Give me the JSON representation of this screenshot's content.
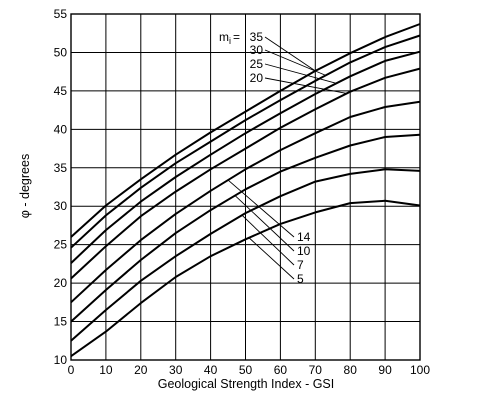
{
  "chart_data": {
    "type": "line",
    "xlabel": "Geological Strength Index - GSI",
    "ylabel": "φ - degrees",
    "xlim": [
      0,
      100
    ],
    "ylim": [
      10,
      55
    ],
    "x_ticks": [
      0,
      10,
      20,
      30,
      40,
      50,
      60,
      70,
      80,
      90,
      100
    ],
    "y_ticks": [
      10,
      15,
      20,
      25,
      30,
      35,
      40,
      45,
      50,
      55
    ],
    "grid": true,
    "legend": "inline curve labels",
    "mi_prefix": "m",
    "mi_subscript": "i",
    "mi_equals": "=",
    "x": [
      0,
      10,
      20,
      30,
      40,
      50,
      60,
      70,
      80,
      90,
      100
    ],
    "series": [
      {
        "name": "35",
        "values": [
          26.0,
          30.1,
          33.5,
          36.7,
          39.6,
          42.3,
          45.0,
          47.6,
          49.9,
          52.0,
          53.7
        ]
      },
      {
        "name": "30",
        "values": [
          24.6,
          28.8,
          32.4,
          35.6,
          38.4,
          41.2,
          43.8,
          46.3,
          48.7,
          50.7,
          52.2
        ]
      },
      {
        "name": "25",
        "values": [
          22.6,
          26.9,
          30.6,
          33.8,
          36.7,
          39.5,
          42.1,
          44.6,
          46.9,
          48.9,
          50.1
        ]
      },
      {
        "name": "20",
        "values": [
          20.6,
          24.8,
          28.7,
          31.9,
          34.8,
          37.5,
          40.2,
          42.6,
          44.9,
          46.7,
          47.9
        ]
      },
      {
        "name": "14",
        "values": [
          17.5,
          21.7,
          25.6,
          29.0,
          32.0,
          34.8,
          37.3,
          39.5,
          41.6,
          42.9,
          43.6
        ]
      },
      {
        "name": "10",
        "values": [
          15.0,
          19.1,
          23.0,
          26.5,
          29.5,
          32.2,
          34.5,
          36.3,
          37.9,
          39.0,
          39.3
        ]
      },
      {
        "name": "7",
        "values": [
          12.5,
          16.5,
          20.3,
          23.5,
          26.4,
          29.1,
          31.3,
          33.2,
          34.2,
          34.8,
          34.6
        ]
      },
      {
        "name": "5",
        "values": [
          10.5,
          13.7,
          17.4,
          20.8,
          23.5,
          25.7,
          27.7,
          29.2,
          30.4,
          30.7,
          30.1
        ]
      }
    ],
    "colors": {
      "line": "#000000",
      "grid": "#000000",
      "background": "#ffffff"
    }
  }
}
